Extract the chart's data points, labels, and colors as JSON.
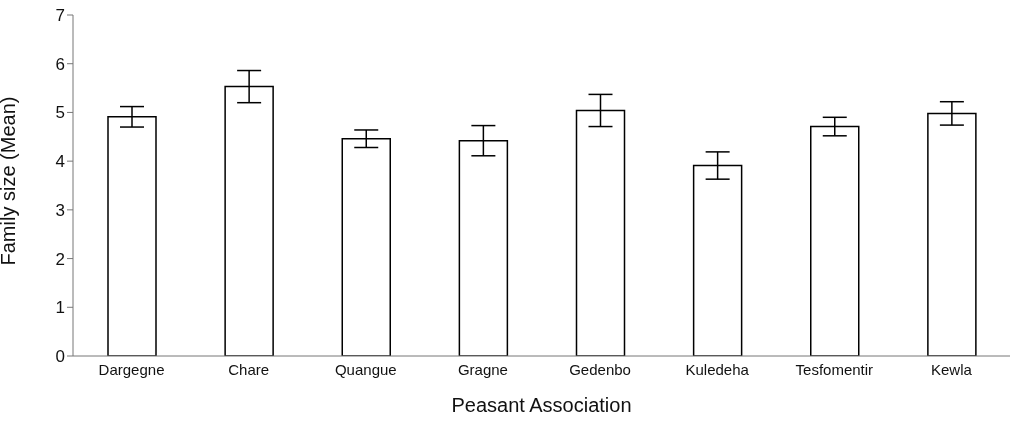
{
  "chart_data": {
    "type": "bar",
    "xlabel": "Peasant Association",
    "ylabel": "Family size (Mean)",
    "categories": [
      "Dargegne",
      "Chare",
      "Quangue",
      "Gragne",
      "Gedenbo",
      "Kuledeha",
      "Tesfomentir",
      "Kewla"
    ],
    "values": [
      4.91,
      5.53,
      4.46,
      4.42,
      5.04,
      3.91,
      4.71,
      4.98
    ],
    "errors": [
      0.21,
      0.33,
      0.18,
      0.31,
      0.33,
      0.28,
      0.19,
      0.24
    ],
    "color": "#ffffff",
    "ylim": [
      0,
      7
    ],
    "yticks": [
      0,
      1,
      2,
      3,
      4,
      5,
      6,
      7
    ],
    "grid": false,
    "legend": false
  }
}
